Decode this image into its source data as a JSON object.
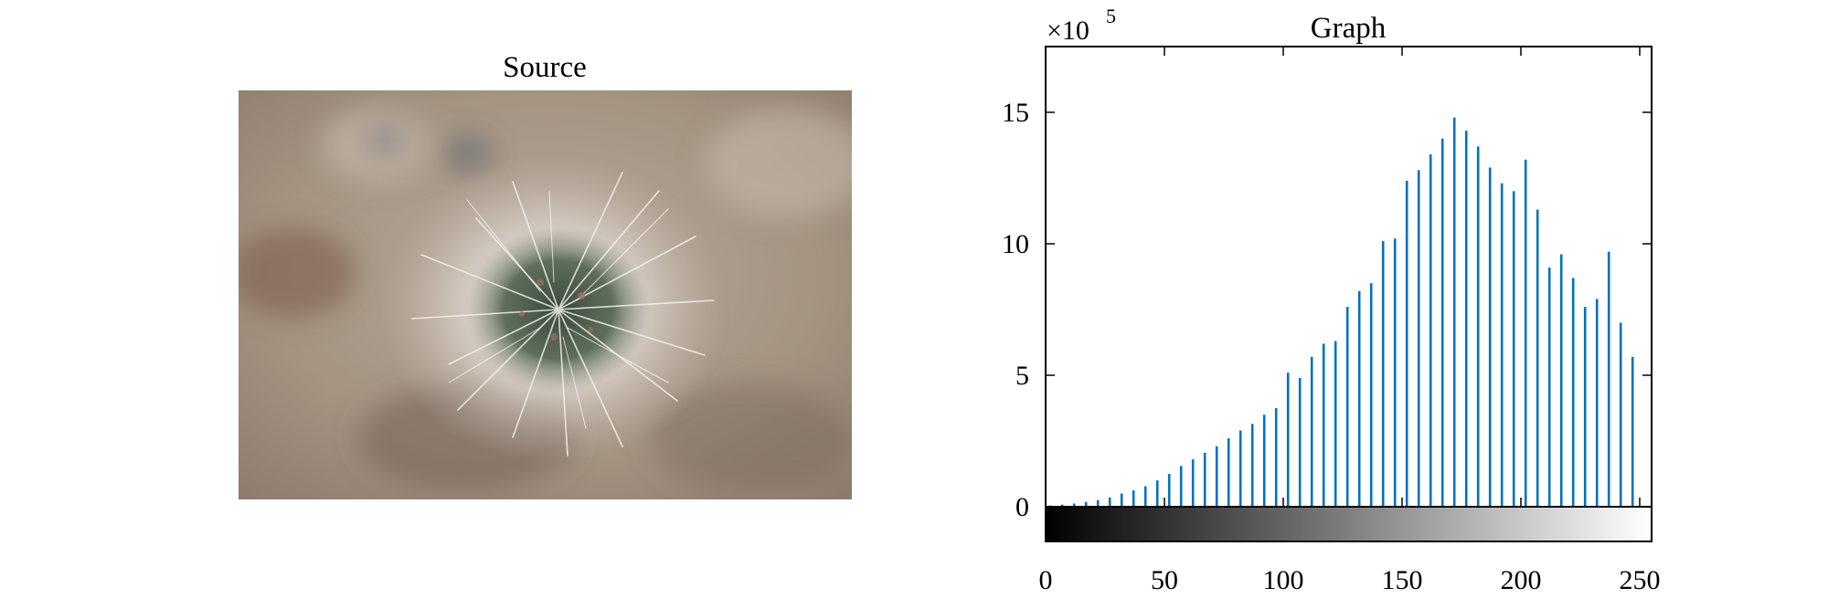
{
  "source_panel": {
    "title": "Source"
  },
  "chart_data": {
    "type": "bar",
    "title": "Graph",
    "exponent_label": "×10",
    "exponent": "5",
    "xlim": [
      0,
      255
    ],
    "ylim": [
      0,
      17.5
    ],
    "y_scale_factor": 100000,
    "x_ticks": [
      0,
      50,
      100,
      150,
      200,
      250
    ],
    "y_ticks": [
      0,
      5,
      10,
      15
    ],
    "bar_color": "#0072BD",
    "colorbar": {
      "type": "grayscale",
      "from": "#000000",
      "to": "#ffffff"
    },
    "series": [
      {
        "x": [
          2,
          7,
          12,
          17,
          22,
          27,
          32,
          37,
          42,
          47,
          52,
          57,
          62,
          67,
          72,
          77,
          82,
          87,
          92,
          97,
          102,
          107,
          112,
          117,
          122,
          127,
          132,
          137,
          142,
          147,
          152,
          157,
          162,
          167,
          172,
          177,
          182,
          187,
          192,
          197,
          202,
          207,
          212,
          217,
          222,
          227,
          232,
          237,
          242,
          247
        ],
        "values": [
          0.05,
          0.08,
          0.12,
          0.18,
          0.25,
          0.35,
          0.5,
          0.62,
          0.78,
          1.0,
          1.25,
          1.55,
          1.8,
          2.05,
          2.3,
          2.6,
          2.9,
          3.15,
          3.5,
          3.75,
          5.1,
          4.9,
          5.7,
          6.2,
          6.3,
          7.6,
          8.2,
          8.5,
          10.1,
          10.2,
          12.4,
          12.8,
          13.4,
          14.0,
          14.8,
          14.3,
          13.7,
          12.9,
          12.3,
          12.0,
          13.2,
          11.3,
          9.1,
          9.6,
          8.7,
          7.6,
          7.9,
          9.7,
          7.0,
          5.7
        ]
      }
    ]
  }
}
